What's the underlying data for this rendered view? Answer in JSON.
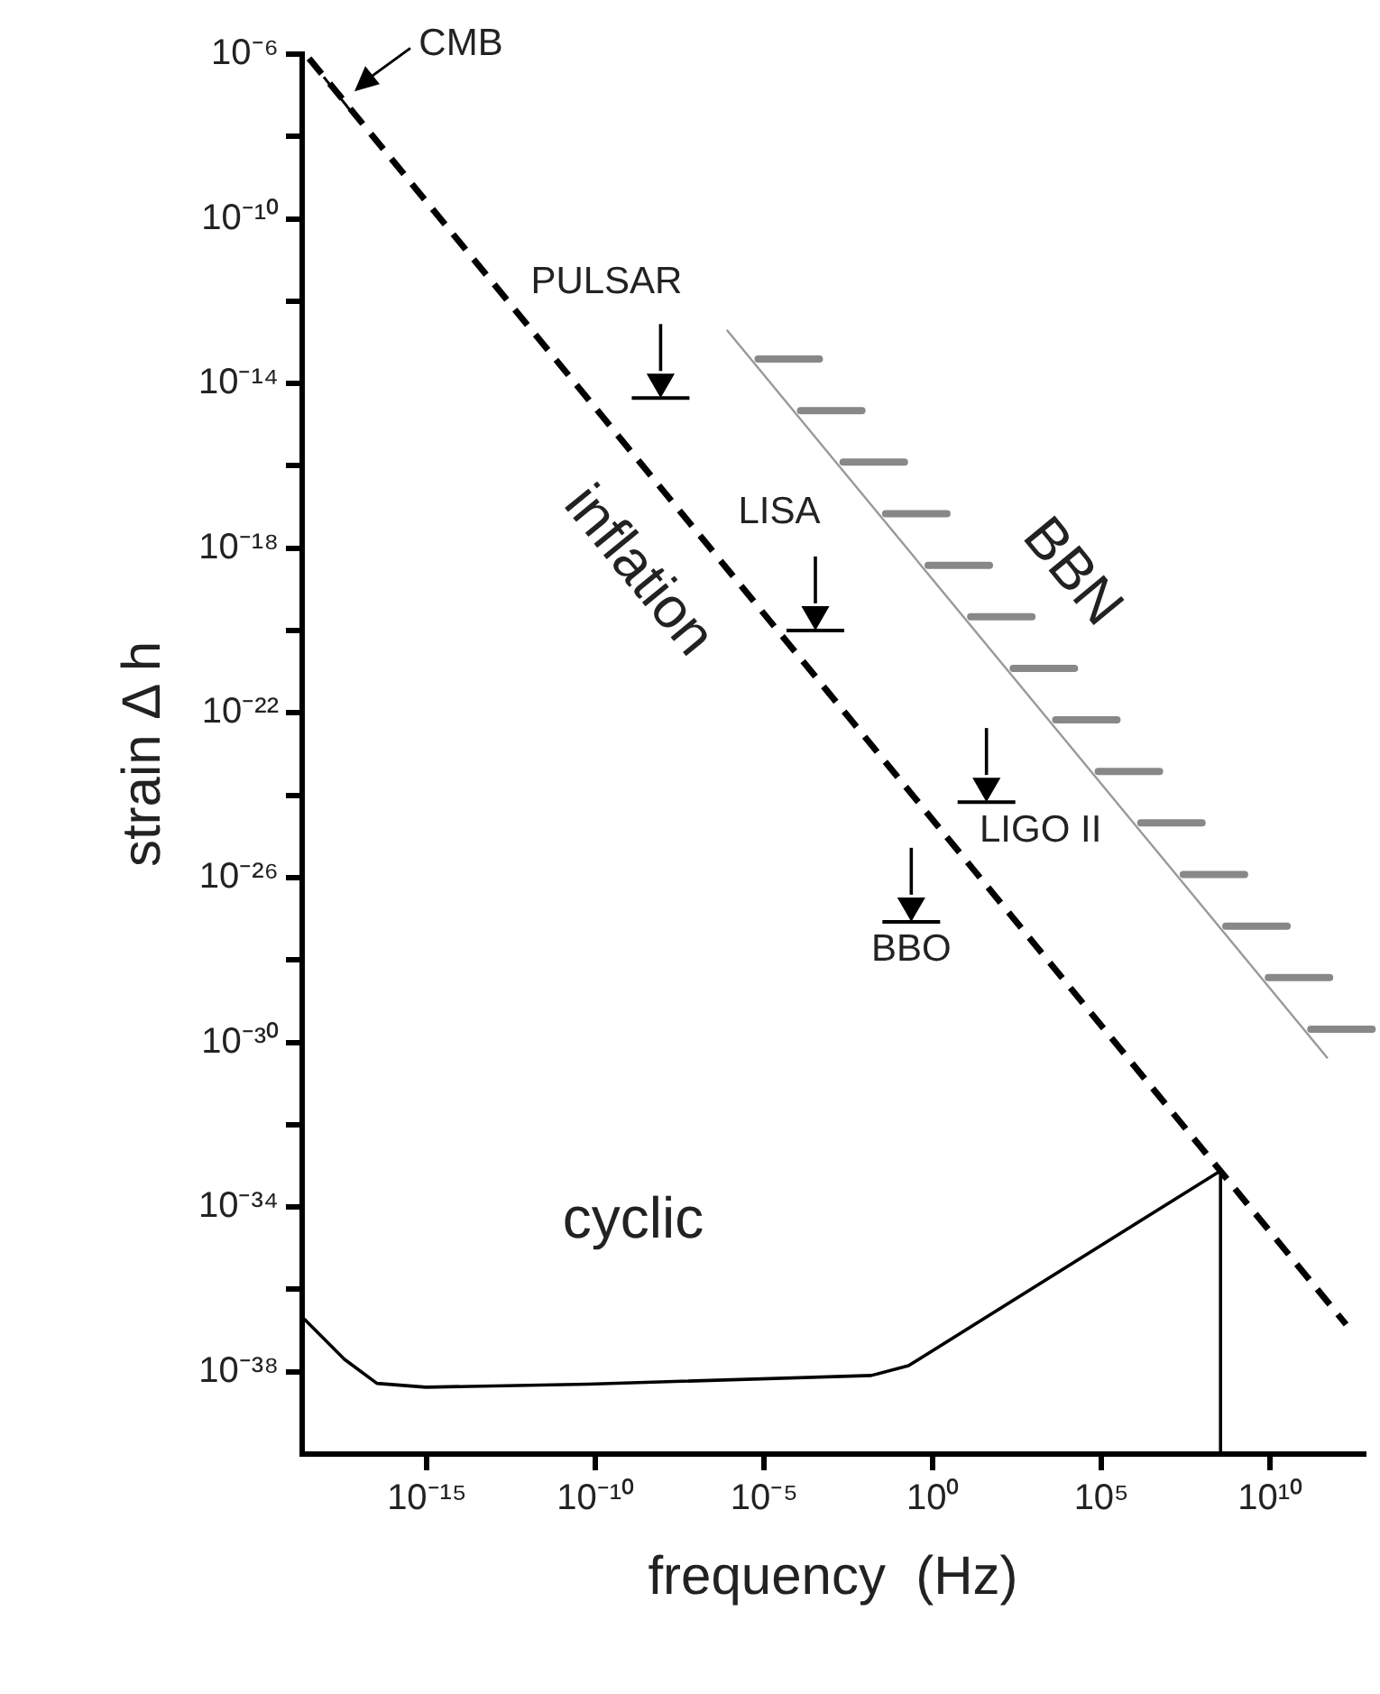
{
  "chart_data": {
    "type": "line",
    "xlabel": "frequency  (Hz)",
    "ylabel": "strain Δ h",
    "log": "xy",
    "grid": false,
    "legend": false,
    "marker": "none",
    "xlim": [
      2e-19,
      6000000000000.0
    ],
    "ylim": [
      1e-40,
      1e-06
    ],
    "xticks": [
      {
        "value": 1e-15,
        "label": "10⁻¹⁵"
      },
      {
        "value": 1e-10,
        "label": "10⁻¹⁰"
      },
      {
        "value": 1e-05,
        "label": "10⁻⁵"
      },
      {
        "value": 1,
        "label": "10⁰"
      },
      {
        "value": 100000.0,
        "label": "10⁵"
      },
      {
        "value": 10000000000.0,
        "label": "10¹⁰"
      }
    ],
    "yticks": [
      {
        "value": 1e-06,
        "label": "10⁻⁶"
      },
      {
        "value": 1e-08,
        "label": null
      },
      {
        "value": 1e-10,
        "label": "10⁻¹⁰"
      },
      {
        "value": 1e-12,
        "label": null
      },
      {
        "value": 1e-14,
        "label": "10⁻¹⁴"
      },
      {
        "value": 1e-16,
        "label": null
      },
      {
        "value": 1e-18,
        "label": "10⁻¹⁸"
      },
      {
        "value": 1e-20,
        "label": null
      },
      {
        "value": 1e-22,
        "label": "10⁻²²"
      },
      {
        "value": 1e-24,
        "label": null
      },
      {
        "value": 1e-26,
        "label": "10⁻²⁶"
      },
      {
        "value": 1e-28,
        "label": null
      },
      {
        "value": 1e-30,
        "label": "10⁻³⁰"
      },
      {
        "value": 1e-32,
        "label": null
      },
      {
        "value": 1e-34,
        "label": "10⁻³⁴"
      },
      {
        "value": 1e-36,
        "label": null
      },
      {
        "value": 1e-38,
        "label": "10⁻³⁸"
      }
    ],
    "series": [
      {
        "name": "inflation",
        "type": "line",
        "color": "#000000",
        "line_style": "dashed",
        "x": [
          3.2e-19,
          1800000000000.0
        ],
        "values": [
          7.9e-07,
          1.4e-37
        ]
      },
      {
        "name": "cyclic",
        "type": "line",
        "color": "#000000",
        "line_style": "solid",
        "x": [
          2.3e-19,
          3.6e-18,
          3.3e-17,
          9.3e-16,
          6e-11,
          0.015,
          0.19,
          340000000.0,
          340000000.0
        ],
        "values": [
          1.9e-37,
          2e-38,
          5.2e-39,
          4.2e-39,
          5e-39,
          8.1e-39,
          1.4e-38,
          7.6e-34,
          1e-40
        ]
      },
      {
        "name": "BBN",
        "type": "line",
        "color": "#999999",
        "line_style": "solid",
        "x": [
          7.8e-07,
          510000000000.0
        ],
        "values": [
          2e-13,
          4.1e-31
        ]
      },
      {
        "type": "scatter",
        "color": "#000000",
        "marker": "triangle",
        "x": [
          8.5e-09,
          0.00033,
          39,
          0.23
        ],
        "values": [
          1.1e-14,
          2.5e-20,
          1.7e-24,
          2.1e-27
        ]
      }
    ],
    "annotations": [
      {
        "text": "CMB",
        "x": 3e-18,
        "y": 8.3e-08
      },
      {
        "text": "PULSAR",
        "x": 8.5e-09,
        "y": 1.1e-14
      },
      {
        "text": "LISA",
        "x": 0.00033,
        "y": 2.5e-20
      },
      {
        "text": "LIGO II",
        "x": 39,
        "y": 1.7e-24
      },
      {
        "text": "BBO",
        "x": 0.23,
        "y": 2.1e-27
      }
    ]
  }
}
